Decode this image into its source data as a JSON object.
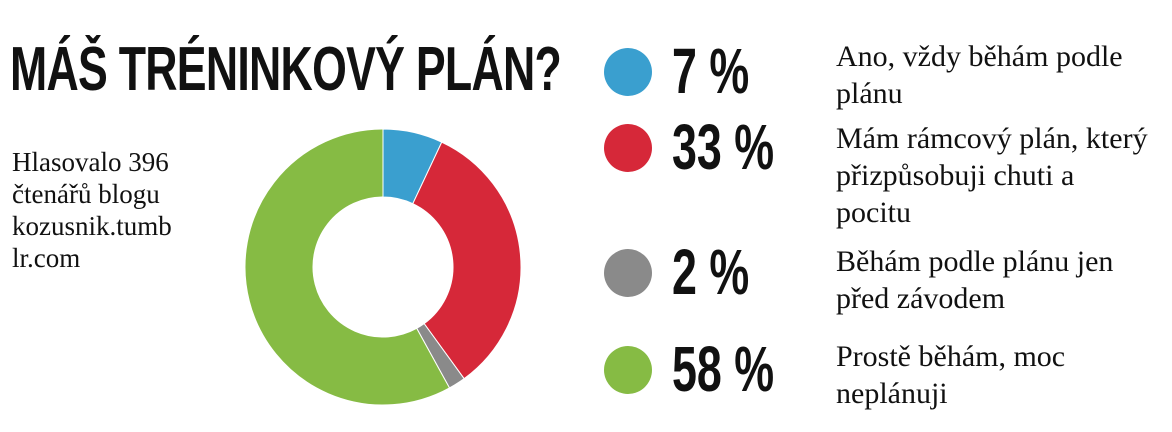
{
  "chart_data": {
    "type": "pie",
    "donut": true,
    "title": "MÁŠ TRÉNINKOVÝ PLÁN?",
    "subtitle": "Hlasovalo 396 čtenářů blogu kozusnik.tumblr.com",
    "categories": [
      "Ano, vždy běhám podle plánu",
      "Mám rámcový plán, který přizpůsobuji chuti a pocitu",
      "Běhám podle plánu jen před závodem",
      "Prostě běhám, moc neplánuji"
    ],
    "values": [
      7,
      33,
      2,
      58
    ],
    "value_labels": [
      "7 %",
      "33 %",
      "2 %",
      "58 %"
    ],
    "colors": [
      "#3a9fcf",
      "#d62839",
      "#8a8a8a",
      "#86bb44"
    ]
  }
}
